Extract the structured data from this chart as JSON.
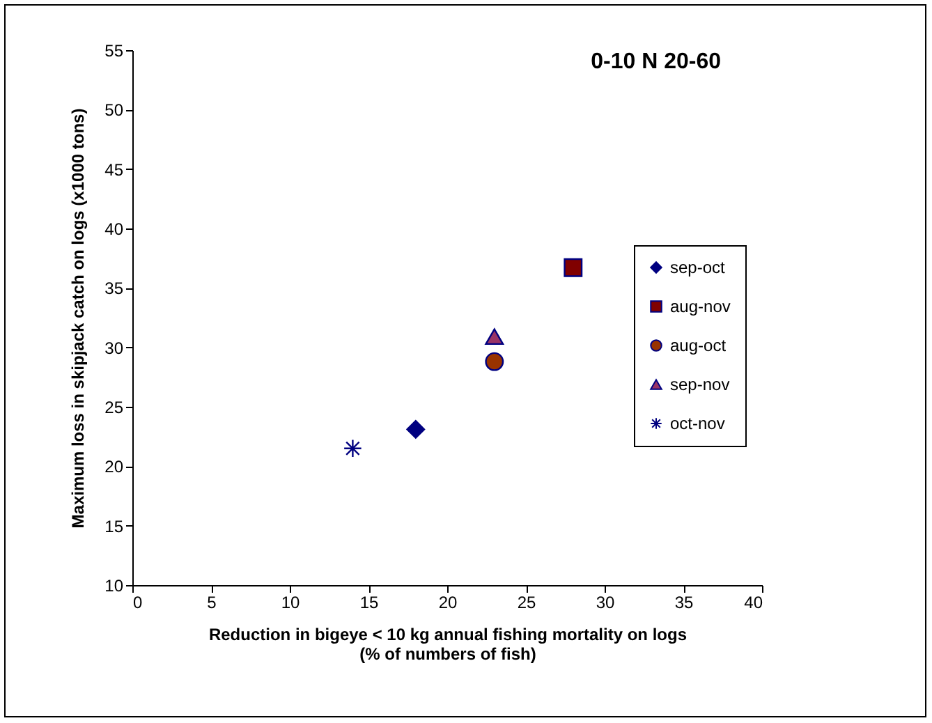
{
  "chart_data": {
    "type": "scatter",
    "title": "0-10 N 20-60",
    "xlabel": "Reduction in bigeye < 10 kg annual fishing mortality on logs\n(% of numbers of fish)",
    "ylabel": "Maximum loss in skipjack catch on logs (x1000 tons)",
    "series": [
      {
        "name": "sep-oct",
        "color": "#000080",
        "marker": "diamond",
        "x": [
          18
        ],
        "values": [
          23.1
        ]
      },
      {
        "name": "aug-nov",
        "color": "#800000",
        "marker": "square",
        "x": [
          28
        ],
        "values": [
          36.7
        ]
      },
      {
        "name": "aug-oct",
        "color": "#993300",
        "marker": "circle",
        "x": [
          23
        ],
        "values": [
          28.8
        ]
      },
      {
        "name": "sep-nov",
        "color": "#993366",
        "marker": "triangle",
        "x": [
          23
        ],
        "values": [
          30.9
        ]
      },
      {
        "name": "oct-nov",
        "color": "#000080",
        "marker": "cross",
        "x": [
          14
        ],
        "values": [
          21.5
        ]
      }
    ],
    "xlim": [
      0,
      40
    ],
    "xticks": [
      0,
      5,
      10,
      15,
      20,
      25,
      30,
      35,
      40
    ],
    "ylim": [
      10,
      55
    ],
    "yticks": [
      10,
      15,
      20,
      25,
      30,
      35,
      40,
      45,
      50,
      55
    ],
    "grid": false,
    "legend": "right"
  }
}
